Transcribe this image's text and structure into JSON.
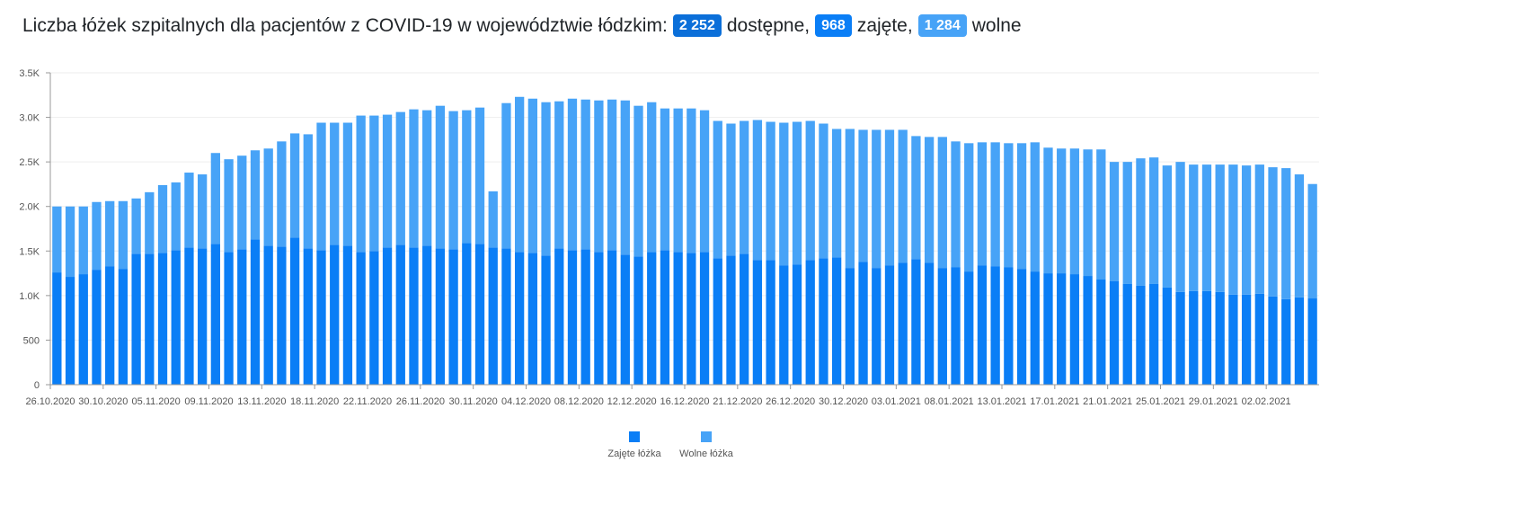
{
  "header": {
    "title": "Liczba łóżek szpitalnych dla pacjentów z COVID-19 w województwie łódzkim:",
    "total_value": "2 252",
    "total_label": "dostępne,",
    "occupied_value": "968",
    "occupied_label": "zajęte,",
    "free_value": "1 284",
    "free_label": "wolne"
  },
  "colors": {
    "occupied": "#0a7ef6",
    "free": "#47a3f7",
    "badge_total": "#0b6fd9"
  },
  "chart_data": {
    "type": "bar",
    "stacked": true,
    "ylim": [
      0,
      3500
    ],
    "y_ticks": [
      0,
      500,
      1000,
      1500,
      2000,
      2500,
      3000,
      3500
    ],
    "y_tick_labels": [
      "0",
      "500",
      "1.0K",
      "1.5K",
      "2.0K",
      "2.5K",
      "3.0K",
      "3.5K"
    ],
    "x_tick_labels": [
      "26.10.2020",
      "30.10.2020",
      "05.11.2020",
      "09.11.2020",
      "13.11.2020",
      "18.11.2020",
      "22.11.2020",
      "26.11.2020",
      "30.11.2020",
      "04.12.2020",
      "08.12.2020",
      "12.12.2020",
      "16.12.2020",
      "21.12.2020",
      "26.12.2020",
      "30.12.2020",
      "03.01.2021",
      "08.01.2021",
      "13.01.2021",
      "17.01.2021",
      "21.01.2021",
      "25.01.2021",
      "29.01.2021",
      "02.02.2021"
    ],
    "x_tick_bar_index": [
      0,
      4,
      8,
      12,
      16,
      20,
      24,
      28,
      32,
      36,
      40,
      44,
      48,
      52,
      56,
      60,
      64,
      68,
      72,
      76,
      80,
      84,
      88,
      92
    ],
    "grid": true,
    "legend": "bottom-center",
    "series": [
      {
        "name": "Zajęte łóżka",
        "values": [
          1260,
          1210,
          1240,
          1290,
          1330,
          1300,
          1470,
          1470,
          1480,
          1510,
          1540,
          1530,
          1580,
          1490,
          1520,
          1630,
          1560,
          1550,
          1650,
          1530,
          1510,
          1570,
          1560,
          1490,
          1500,
          1540,
          1570,
          1540,
          1560,
          1530,
          1520,
          1590,
          1580,
          1540,
          1530,
          1490,
          1480,
          1450,
          1530,
          1510,
          1520,
          1490,
          1510,
          1460,
          1440,
          1490,
          1510,
          1490,
          1480,
          1490,
          1420,
          1450,
          1470,
          1400,
          1400,
          1340,
          1350,
          1400,
          1420,
          1430,
          1310,
          1380,
          1310,
          1340,
          1370,
          1410,
          1370,
          1310,
          1320,
          1270,
          1340,
          1330,
          1320,
          1300,
          1270,
          1250,
          1250,
          1240,
          1220,
          1180,
          1160,
          1130,
          1110,
          1130,
          1090,
          1040,
          1050,
          1050,
          1040,
          1010,
          1010,
          1020,
          990,
          960,
          980,
          968
        ]
      },
      {
        "name": "Wolne łóżka",
        "values": [
          740,
          790,
          760,
          760,
          730,
          760,
          620,
          690,
          760,
          760,
          840,
          830,
          1020,
          1040,
          1050,
          1000,
          1090,
          1180,
          1170,
          1280,
          1430,
          1370,
          1380,
          1530,
          1520,
          1490,
          1490,
          1550,
          1520,
          1600,
          1550,
          1490,
          1530,
          630,
          1630,
          1740,
          1730,
          1720,
          1650,
          1700,
          1680,
          1700,
          1690,
          1730,
          1690,
          1680,
          1590,
          1610,
          1620,
          1590,
          1540,
          1480,
          1490,
          1570,
          1550,
          1600,
          1600,
          1560,
          1510,
          1440,
          1560,
          1480,
          1550,
          1520,
          1490,
          1380,
          1410,
          1470,
          1410,
          1440,
          1380,
          1390,
          1390,
          1410,
          1450,
          1410,
          1400,
          1410,
          1420,
          1460,
          1340,
          1370,
          1430,
          1420,
          1370,
          1460,
          1420,
          1420,
          1430,
          1460,
          1450,
          1450,
          1450,
          1470,
          1380,
          1284
        ]
      }
    ]
  }
}
